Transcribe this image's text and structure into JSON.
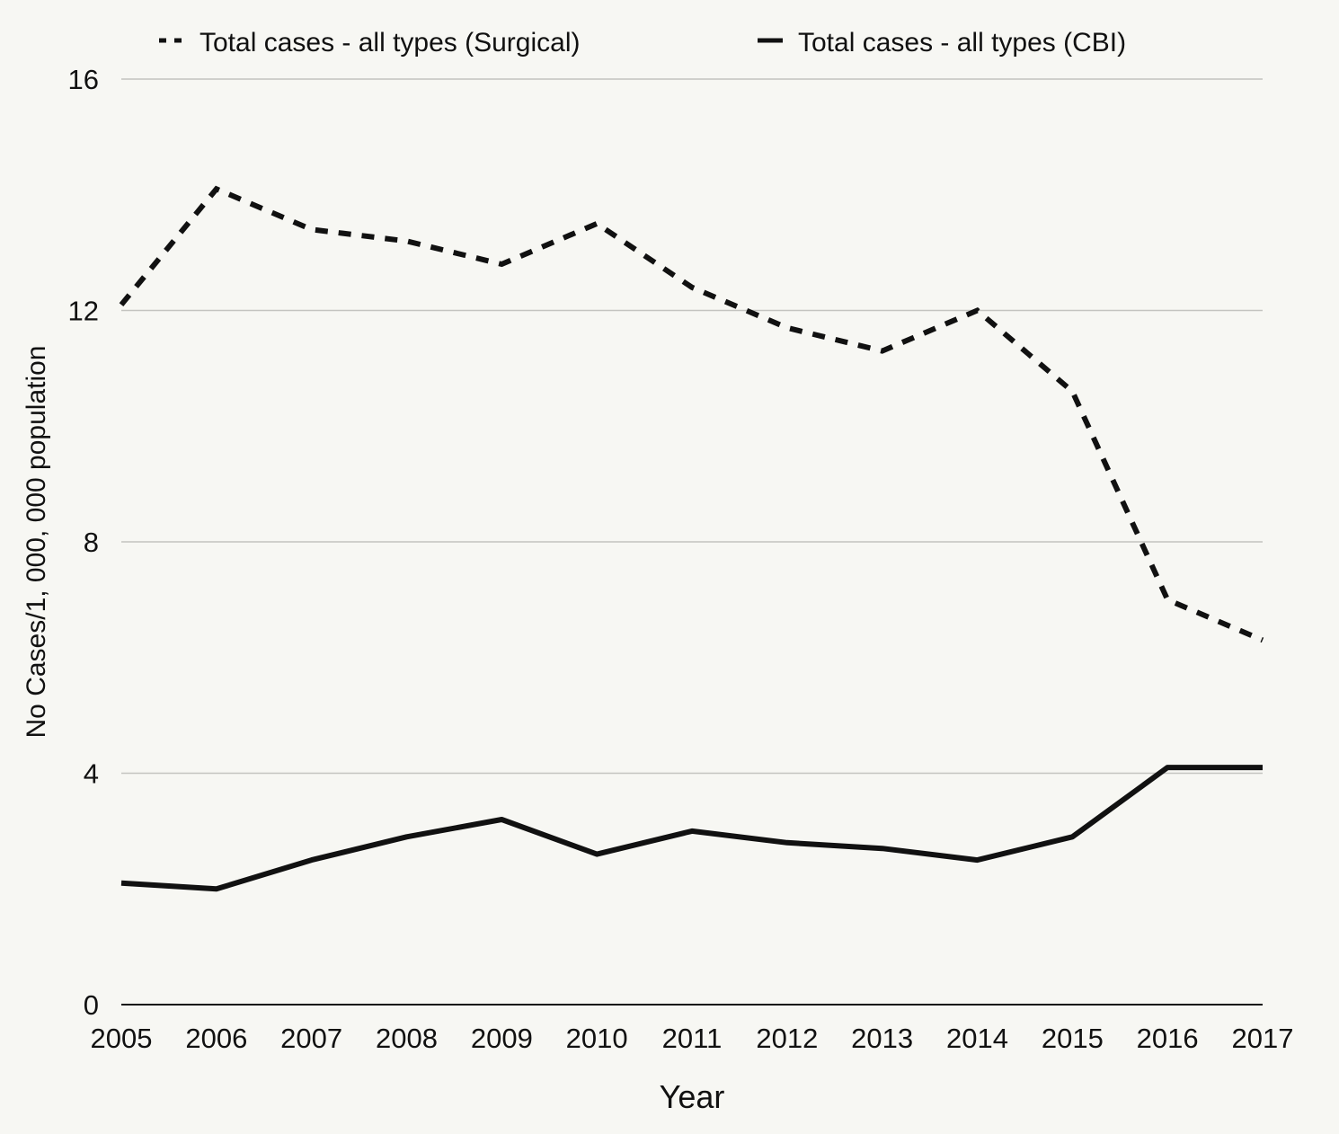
{
  "chart_data": {
    "type": "line",
    "title": "",
    "xlabel": "Year",
    "ylabel": "No Cases/1, 000, 000 population",
    "x": [
      "2005",
      "2006",
      "2007",
      "2008",
      "2009",
      "2010",
      "2011",
      "2012",
      "2013",
      "2014",
      "2015",
      "2016",
      "2017"
    ],
    "y_ticks": [
      "0",
      "4",
      "8",
      "12",
      "16"
    ],
    "ylim": [
      0,
      16
    ],
    "grid": true,
    "legend_position": "top",
    "series": [
      {
        "name": "Total cases - all types (Surgical)",
        "style": "dashed",
        "color": "#111111",
        "values": [
          12.1,
          14.1,
          13.4,
          13.2,
          12.8,
          13.5,
          12.4,
          11.7,
          11.3,
          12.0,
          10.6,
          7.0,
          6.3
        ]
      },
      {
        "name": "Total cases - all types (CBI)",
        "style": "solid",
        "color": "#111111",
        "values": [
          2.1,
          2.0,
          2.5,
          2.9,
          3.2,
          2.6,
          3.0,
          2.8,
          2.7,
          2.5,
          2.9,
          4.1,
          4.1
        ]
      }
    ]
  }
}
